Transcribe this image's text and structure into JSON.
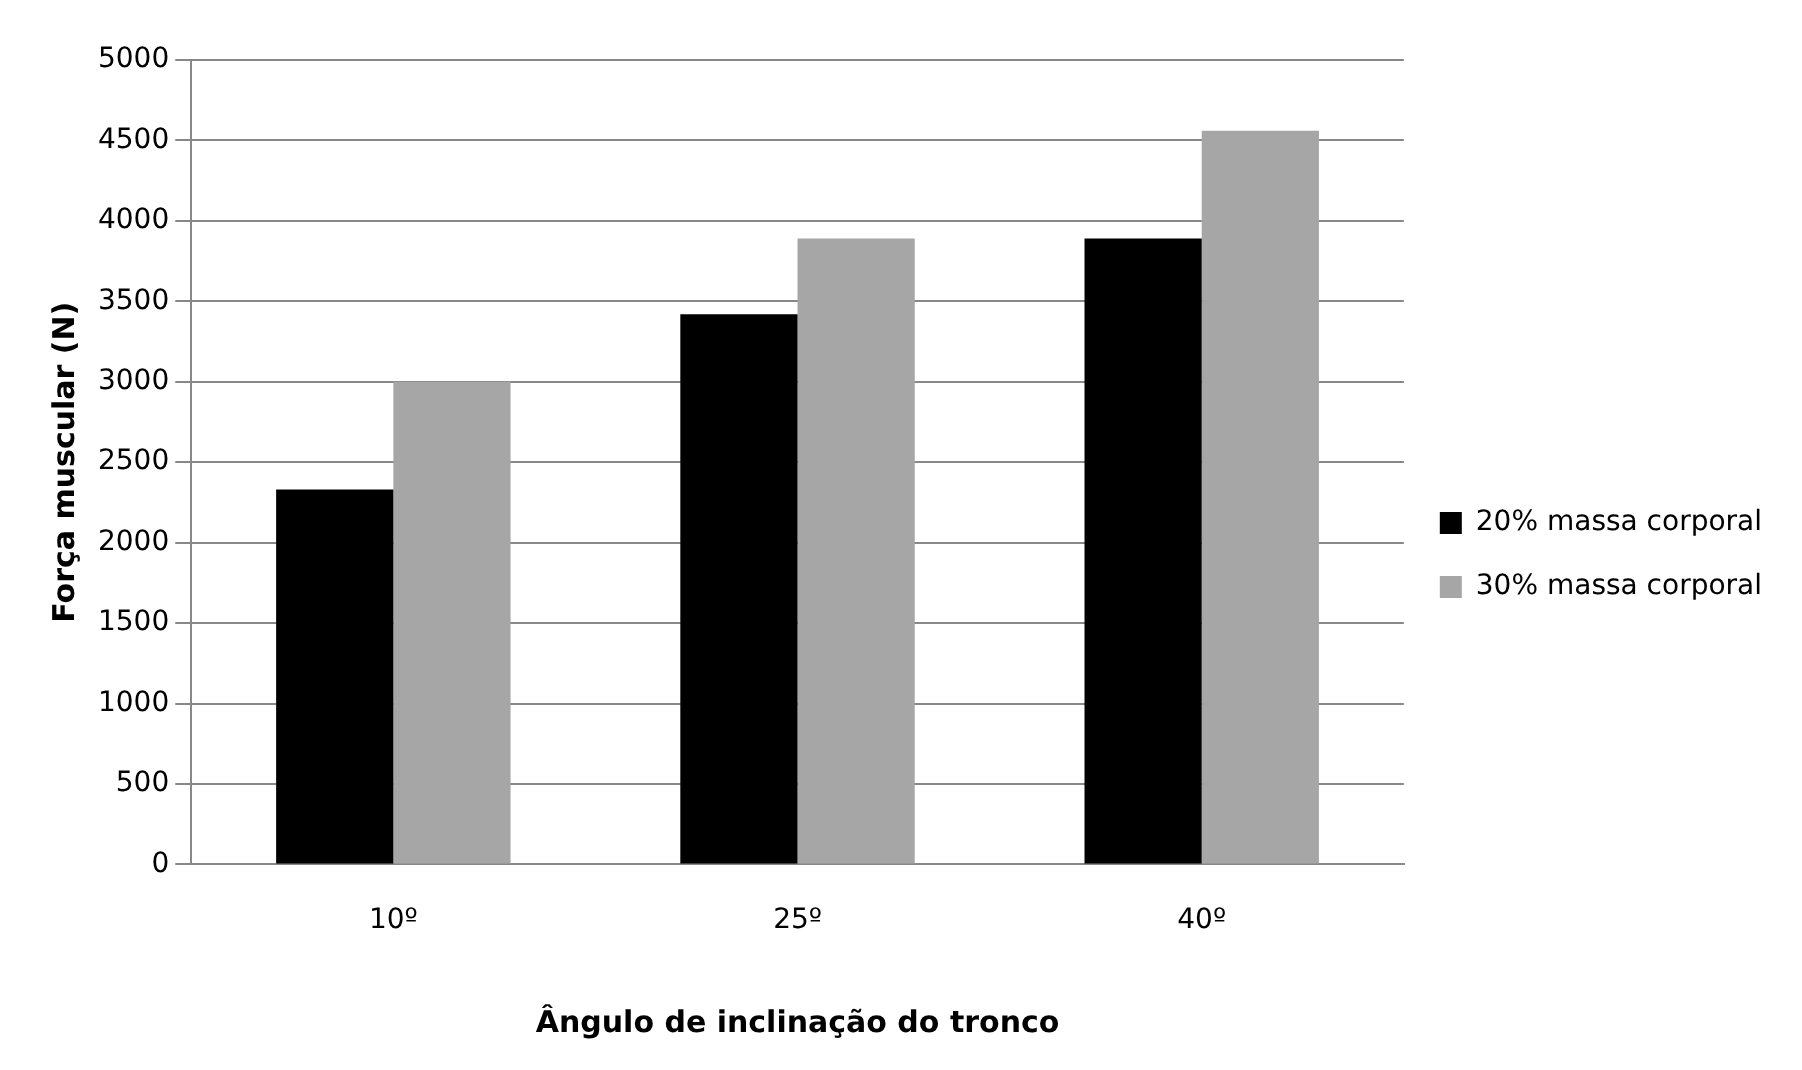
{
  "chart_data": {
    "type": "bar",
    "xlabel": "Ângulo de inclinação do tronco",
    "ylabel": "Força muscular (N)",
    "categories": [
      "10º",
      "25º",
      "40º"
    ],
    "series": [
      {
        "name": "20% massa corporal",
        "color": "#000000",
        "values": [
          2330,
          3420,
          3890
        ]
      },
      {
        "name": "30% massa corporal",
        "color": "#a6a6a6",
        "values": [
          3000,
          3890,
          4560
        ]
      }
    ],
    "ylim": [
      0,
      5000
    ],
    "yticks": [
      0,
      500,
      1000,
      1500,
      2000,
      2500,
      3000,
      3500,
      4000,
      4500,
      5000
    ],
    "grid": "y",
    "legend": "right"
  }
}
